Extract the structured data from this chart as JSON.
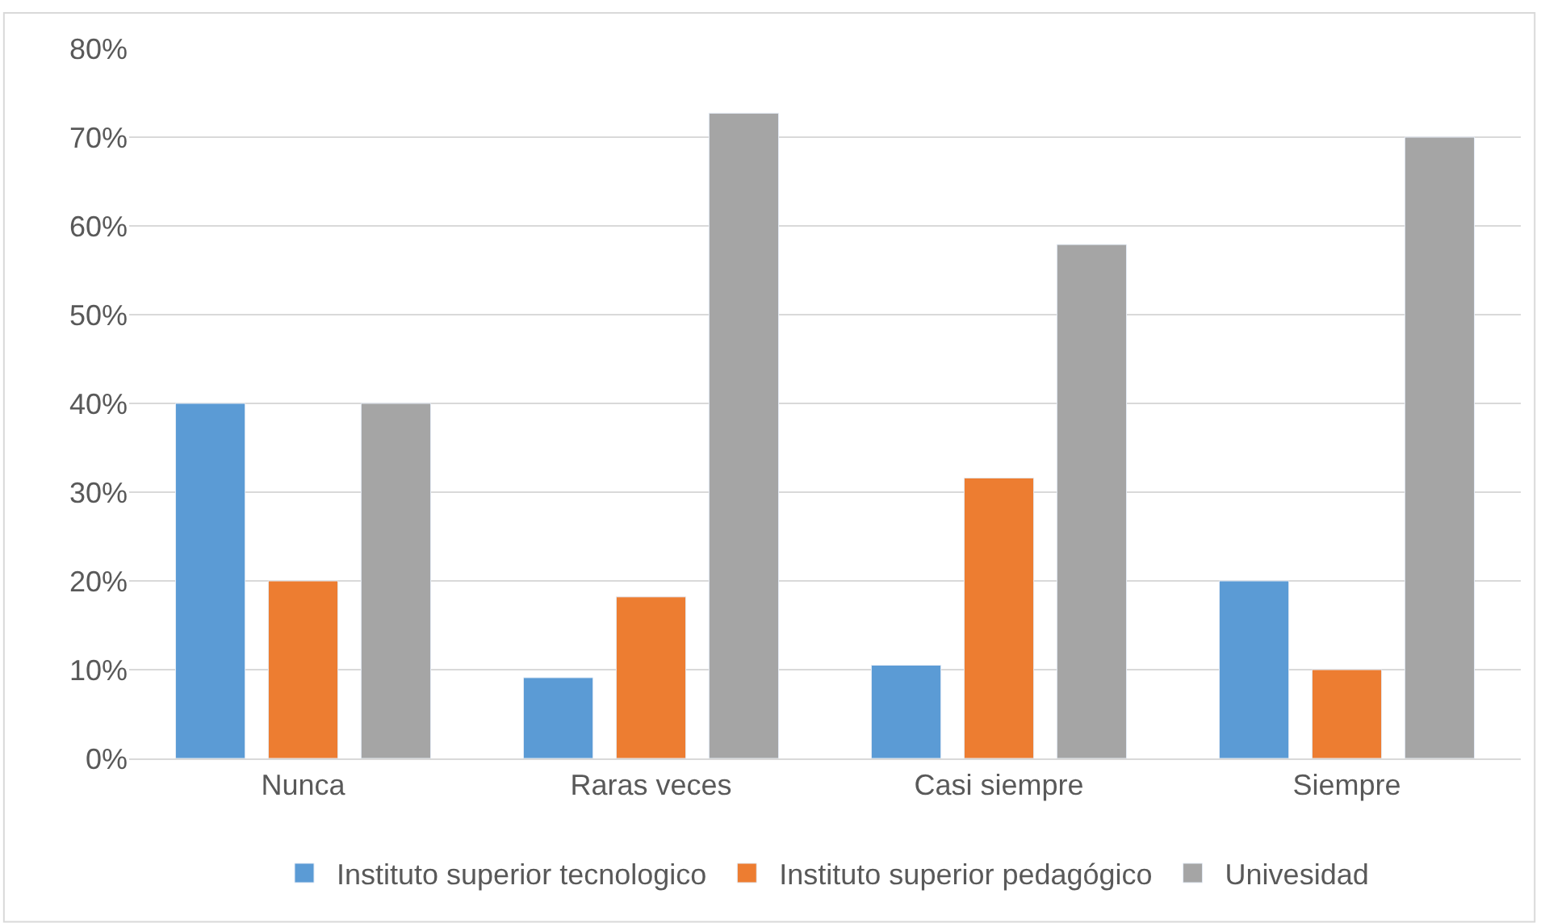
{
  "chart_data": {
    "type": "bar",
    "categories": [
      "Nunca",
      "Raras veces",
      "Casi siempre",
      "Siempre"
    ],
    "series": [
      {
        "name": "Instituto superior tecnologico",
        "color": "#5b9bd5",
        "values": [
          40,
          9.1,
          10.5,
          20
        ]
      },
      {
        "name": "Instituto superior pedagógico",
        "color": "#ed7d31",
        "values": [
          20,
          18.2,
          31.6,
          10
        ]
      },
      {
        "name": "Univesidad",
        "color": "#a5a5a5",
        "values": [
          40,
          72.7,
          57.9,
          70
        ]
      }
    ],
    "ylim": [
      0,
      80
    ],
    "yticks": [
      {
        "value": 0,
        "label": "0%"
      },
      {
        "value": 10,
        "label": "10%"
      },
      {
        "value": 20,
        "label": "20%"
      },
      {
        "value": 30,
        "label": "30%"
      },
      {
        "value": 40,
        "label": "40%"
      },
      {
        "value": 50,
        "label": "50%"
      },
      {
        "value": 60,
        "label": "60%"
      },
      {
        "value": 70,
        "label": "70%"
      },
      {
        "value": 80,
        "label": "80%"
      }
    ],
    "grid": "y",
    "legend": "bottom"
  }
}
